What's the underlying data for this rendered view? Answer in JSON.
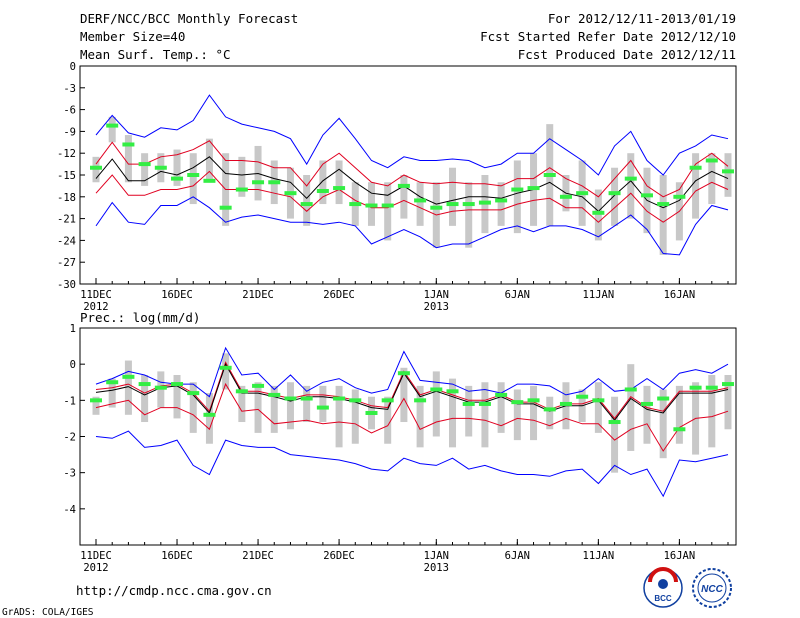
{
  "header": {
    "title": "DERF/NCC/BCC Monthly Forecast",
    "member_size": "Member Size=40",
    "period": "For 2012/12/11-2013/01/19",
    "fcst_started": "Fcst Started Refer Date 2012/12/10",
    "fcst_produced": "Fcst Produced Date 2012/12/11"
  },
  "footer": {
    "url": "http://cmdp.ncc.cma.gov.cn",
    "credit": "GrADS: COLA/IGES",
    "logo_bcc_text": "BCC",
    "logo_ncc_text": "NCC"
  },
  "colors": {
    "ensemble_range": "#0000ff",
    "spread_band": "#e00020",
    "ensemble_mean": "#000000",
    "observed": "#33ee44",
    "box": "#c8c8c8"
  },
  "chart_data": [
    {
      "type": "line",
      "title": "Mean Surf. Temp.: °C",
      "ylim": [
        -30,
        0
      ],
      "yticks": [
        0,
        -3,
        -6,
        -9,
        -12,
        -15,
        -18,
        -21,
        -24,
        -27,
        -30
      ],
      "xticks": [
        {
          "day": 0,
          "label": "11DEC",
          "sub": "2012"
        },
        {
          "day": 5,
          "label": "16DEC",
          "sub": ""
        },
        {
          "day": 10,
          "label": "21DEC",
          "sub": ""
        },
        {
          "day": 15,
          "label": "26DEC",
          "sub": ""
        },
        {
          "day": 21,
          "label": "1JAN",
          "sub": "2013"
        },
        {
          "day": 26,
          "label": "6JAN",
          "sub": ""
        },
        {
          "day": 31,
          "label": "11JAN",
          "sub": ""
        },
        {
          "day": 36,
          "label": "16JAN",
          "sub": ""
        }
      ],
      "days": 40,
      "series": [
        {
          "name": "max",
          "values": [
            -9.5,
            -6.8,
            -9.2,
            -9.8,
            -8.5,
            -8.8,
            -7.5,
            -4,
            -7,
            -8,
            -8.5,
            -9,
            -10,
            -13.5,
            -9.5,
            -7.2,
            -10,
            -13,
            -14,
            -12.5,
            -13,
            -13,
            -12.8,
            -13,
            -14,
            -13.5,
            -12,
            -12,
            -10,
            -11.5,
            -13,
            -15,
            -11,
            -9,
            -13,
            -15,
            -12,
            -11,
            -9.5,
            -10
          ]
        },
        {
          "name": "upper",
          "values": [
            -13.5,
            -10.5,
            -13.5,
            -13.5,
            -12.5,
            -12.2,
            -11.5,
            -10.3,
            -13,
            -13,
            -13.2,
            -14,
            -14,
            -16.5,
            -13.5,
            -12,
            -14,
            -16,
            -16.5,
            -15,
            -16,
            -16.2,
            -16,
            -16.2,
            -16.2,
            -16.5,
            -15.5,
            -15.5,
            -14,
            -15.5,
            -16.5,
            -18,
            -15.5,
            -13,
            -16.5,
            -18,
            -17,
            -13.5,
            -12,
            -13.8
          ]
        },
        {
          "name": "mean",
          "values": [
            -15.5,
            -12.8,
            -15.8,
            -15.8,
            -14.5,
            -15,
            -14,
            -12.5,
            -14.8,
            -15,
            -14.8,
            -15.5,
            -16,
            -18.2,
            -15.8,
            -14.2,
            -16,
            -17.5,
            -17.8,
            -16.5,
            -18,
            -19,
            -18.5,
            -18,
            -18,
            -18.2,
            -17.5,
            -17,
            -16,
            -17.5,
            -18,
            -20,
            -17.8,
            -15.8,
            -18.5,
            -19.5,
            -18.5,
            -15.8,
            -14.5,
            -15.5
          ]
        },
        {
          "name": "lower",
          "values": [
            -17.5,
            -15,
            -17.8,
            -17.8,
            -17,
            -17,
            -16.5,
            -14.5,
            -17,
            -17,
            -17,
            -17.5,
            -18,
            -20,
            -18,
            -17,
            -18.5,
            -19.5,
            -19.5,
            -18.5,
            -19.5,
            -20.5,
            -20,
            -19.8,
            -19.8,
            -19.8,
            -19,
            -18.5,
            -18.2,
            -19.5,
            -19.5,
            -21.5,
            -19.5,
            -17.5,
            -20,
            -21.5,
            -20,
            -17.2,
            -16,
            -17
          ]
        },
        {
          "name": "min",
          "values": [
            -22,
            -18.8,
            -21.5,
            -21.8,
            -19.2,
            -19.2,
            -18,
            -19.5,
            -21.5,
            -20.8,
            -20.5,
            -21,
            -21.5,
            -21.5,
            -21.8,
            -21.5,
            -22,
            -24.5,
            -23.5,
            -22.5,
            -23.5,
            -25,
            -24.5,
            -24.5,
            -23.5,
            -22.5,
            -22,
            -22.8,
            -22,
            -22,
            -22.5,
            -23.5,
            -22,
            -20.5,
            -22.5,
            -25.8,
            -26,
            -21.8,
            -19.2,
            -19.8
          ]
        },
        {
          "name": "observed",
          "values": [
            -14,
            -8.2,
            -10.8,
            -13.5,
            -14,
            -15.5,
            -15,
            -15.8,
            -19.5,
            -17,
            -16,
            -16,
            -17.5,
            -19,
            -17.2,
            -16.8,
            -19,
            -19.2,
            -19.2,
            -16.5,
            -18.5,
            -19.5,
            -19,
            -19,
            -18.8,
            -18.5,
            -17,
            -16.8,
            -15,
            -18,
            -17.5,
            -20.2,
            -17.5,
            -15.5,
            -17.8,
            -19,
            -18,
            -14,
            -13,
            -14.5
          ]
        }
      ],
      "boxes": [
        [
          -16,
          -12.5
        ],
        [
          -10.5,
          -7
        ],
        [
          -16,
          -9.5
        ],
        [
          -16.5,
          -12
        ],
        [
          -16,
          -12
        ],
        [
          -16.5,
          -11.5
        ],
        [
          -19,
          -12
        ],
        [
          -16,
          -10
        ],
        [
          -22,
          -12
        ],
        [
          -18,
          -12.5
        ],
        [
          -18.5,
          -11
        ],
        [
          -19,
          -13
        ],
        [
          -21,
          -14
        ],
        [
          -22,
          -15
        ],
        [
          -19,
          -13
        ],
        [
          -19,
          -13
        ],
        [
          -22,
          -16
        ],
        [
          -22,
          -16
        ],
        [
          -24,
          -16
        ],
        [
          -21,
          -15
        ],
        [
          -22,
          -16
        ],
        [
          -25,
          -16
        ],
        [
          -22,
          -14
        ],
        [
          -25,
          -16
        ],
        [
          -23,
          -15
        ],
        [
          -22,
          -16
        ],
        [
          -23,
          -13
        ],
        [
          -22,
          -12
        ],
        [
          -22,
          -8
        ],
        [
          -20,
          -15
        ],
        [
          -22,
          -13
        ],
        [
          -24,
          -17
        ],
        [
          -22,
          -14
        ],
        [
          -21,
          -12
        ],
        [
          -23,
          -14
        ],
        [
          -26,
          -15
        ],
        [
          -24,
          -16
        ],
        [
          -21,
          -12
        ],
        [
          -19,
          -12
        ],
        [
          -18,
          -12
        ]
      ]
    },
    {
      "type": "line",
      "title": "Prec.: log(mm/d)",
      "ylim": [
        -5,
        1
      ],
      "yticks": [
        1,
        0,
        -1,
        -2,
        -3,
        -4
      ],
      "xticks": [
        {
          "day": 0,
          "label": "11DEC",
          "sub": "2012"
        },
        {
          "day": 5,
          "label": "16DEC",
          "sub": ""
        },
        {
          "day": 10,
          "label": "21DEC",
          "sub": ""
        },
        {
          "day": 15,
          "label": "26DEC",
          "sub": ""
        },
        {
          "day": 21,
          "label": "1JAN",
          "sub": "2013"
        },
        {
          "day": 26,
          "label": "6JAN",
          "sub": ""
        },
        {
          "day": 31,
          "label": "11JAN",
          "sub": ""
        },
        {
          "day": 36,
          "label": "16JAN",
          "sub": ""
        }
      ],
      "days": 40,
      "series": [
        {
          "name": "max",
          "values": [
            -0.55,
            -0.4,
            -0.2,
            -0.3,
            -0.5,
            -0.55,
            -0.55,
            -0.9,
            0.45,
            -0.3,
            -0.25,
            -0.7,
            -0.3,
            -0.75,
            -0.5,
            -0.4,
            -0.65,
            -0.8,
            -0.7,
            0.35,
            -0.45,
            -0.5,
            -0.55,
            -0.75,
            -0.7,
            -0.8,
            -0.55,
            -0.55,
            -0.6,
            -0.85,
            -0.75,
            -0.4,
            -0.75,
            -0.7,
            -0.4,
            -0.7,
            -0.25,
            -0.15,
            -0.25,
            0
          ]
        },
        {
          "name": "upper",
          "values": [
            -0.7,
            -0.65,
            -0.55,
            -0.8,
            -0.6,
            -0.55,
            -0.8,
            -1.3,
            0.05,
            -0.75,
            -0.75,
            -0.85,
            -0.95,
            -0.85,
            -0.85,
            -0.9,
            -1,
            -1.15,
            -1.2,
            -0.2,
            -0.85,
            -0.7,
            -0.85,
            -1,
            -1,
            -0.85,
            -1.05,
            -1.05,
            -1.25,
            -1.1,
            -1.1,
            -0.95,
            -1.5,
            -0.9,
            -1.2,
            -1.3,
            -0.75,
            -0.75,
            -0.75,
            -0.65
          ]
        },
        {
          "name": "mean",
          "values": [
            -0.78,
            -0.72,
            -0.62,
            -0.85,
            -0.65,
            -0.6,
            -0.85,
            -1.35,
            0,
            -0.8,
            -0.8,
            -0.9,
            -1.02,
            -0.9,
            -0.9,
            -0.95,
            -1.05,
            -1.2,
            -1.25,
            -0.25,
            -0.9,
            -0.75,
            -0.9,
            -1.05,
            -1.05,
            -0.9,
            -1.1,
            -1.1,
            -1.3,
            -1.15,
            -1.15,
            -1,
            -1.55,
            -0.95,
            -1.25,
            -1.35,
            -0.8,
            -0.8,
            -0.8,
            -0.7
          ]
        },
        {
          "name": "lower",
          "values": [
            -1.2,
            -1.1,
            -1,
            -1.4,
            -1.2,
            -1.2,
            -1.4,
            -1.8,
            -0.55,
            -1.3,
            -1.25,
            -1.65,
            -1.6,
            -1.55,
            -1.65,
            -1.6,
            -1.65,
            -1.9,
            -1.7,
            -0.95,
            -1.8,
            -1.6,
            -1.5,
            -1.5,
            -1.55,
            -1.7,
            -1.5,
            -1.55,
            -1.7,
            -1.5,
            -1.65,
            -1.65,
            -2.1,
            -1.8,
            -1.65,
            -2.4,
            -1.75,
            -1.5,
            -1.45,
            -1.3
          ]
        },
        {
          "name": "min",
          "values": [
            -2,
            -2.05,
            -1.85,
            -2.3,
            -2.25,
            -2.1,
            -2.8,
            -3.05,
            -2.1,
            -2.25,
            -2.3,
            -2.3,
            -2.5,
            -2.55,
            -2.6,
            -2.65,
            -2.75,
            -2.9,
            -2.95,
            -2.6,
            -2.75,
            -2.8,
            -2.6,
            -2.9,
            -2.8,
            -2.95,
            -3.05,
            -3.05,
            -3.1,
            -2.95,
            -2.9,
            -3.3,
            -2.8,
            -3.05,
            -2.9,
            -3.65,
            -2.65,
            -2.7,
            -2.6,
            -2.5
          ]
        },
        {
          "name": "observed",
          "values": [
            -1,
            -0.5,
            -0.35,
            -0.55,
            -0.65,
            -0.55,
            -0.8,
            -1.4,
            -0.1,
            -0.75,
            -0.6,
            -0.85,
            -0.95,
            -0.95,
            -1.2,
            -0.95,
            -1,
            -1.35,
            -1,
            -0.25,
            -1,
            -0.7,
            -0.75,
            -1.1,
            -1.1,
            -0.85,
            -1.05,
            -1,
            -1.25,
            -1.1,
            -0.9,
            -1,
            -1.6,
            -0.7,
            -1.1,
            -0.95,
            -1.8,
            -0.65,
            -0.65,
            -0.55
          ]
        }
      ],
      "boxes": [
        [
          -1.4,
          -0.9
        ],
        [
          -1.2,
          -0.4
        ],
        [
          -1.4,
          0.1
        ],
        [
          -1.6,
          -0.3
        ],
        [
          -1.2,
          -0.2
        ],
        [
          -1.5,
          -0.3
        ],
        [
          -1.9,
          -0.5
        ],
        [
          -2.2,
          -0.8
        ],
        [
          -0.7,
          0.3
        ],
        [
          -1.6,
          -0.6
        ],
        [
          -1.9,
          -0.5
        ],
        [
          -1.9,
          -0.6
        ],
        [
          -1.8,
          -0.5
        ],
        [
          -1.6,
          -0.6
        ],
        [
          -1.6,
          -0.6
        ],
        [
          -2.3,
          -0.6
        ],
        [
          -2.2,
          -0.7
        ],
        [
          -1.8,
          -0.9
        ],
        [
          -2.2,
          -0.9
        ],
        [
          -1.6,
          -0.1
        ],
        [
          -2.3,
          -0.6
        ],
        [
          -2,
          -0.2
        ],
        [
          -2.3,
          -0.4
        ],
        [
          -2,
          -0.6
        ],
        [
          -2.3,
          -0.5
        ],
        [
          -1.9,
          -0.5
        ],
        [
          -2.1,
          -0.7
        ],
        [
          -2.1,
          -0.6
        ],
        [
          -1.8,
          -0.9
        ],
        [
          -1.8,
          -0.5
        ],
        [
          -1.6,
          -0.7
        ],
        [
          -1.9,
          -0.5
        ],
        [
          -3,
          -0.9
        ],
        [
          -2.4,
          0
        ],
        [
          -2.2,
          -0.6
        ],
        [
          -2.6,
          -0.7
        ],
        [
          -2.2,
          -0.6
        ],
        [
          -2.5,
          -0.5
        ],
        [
          -2.3,
          -0.3
        ],
        [
          -1.8,
          -0.3
        ]
      ]
    }
  ]
}
